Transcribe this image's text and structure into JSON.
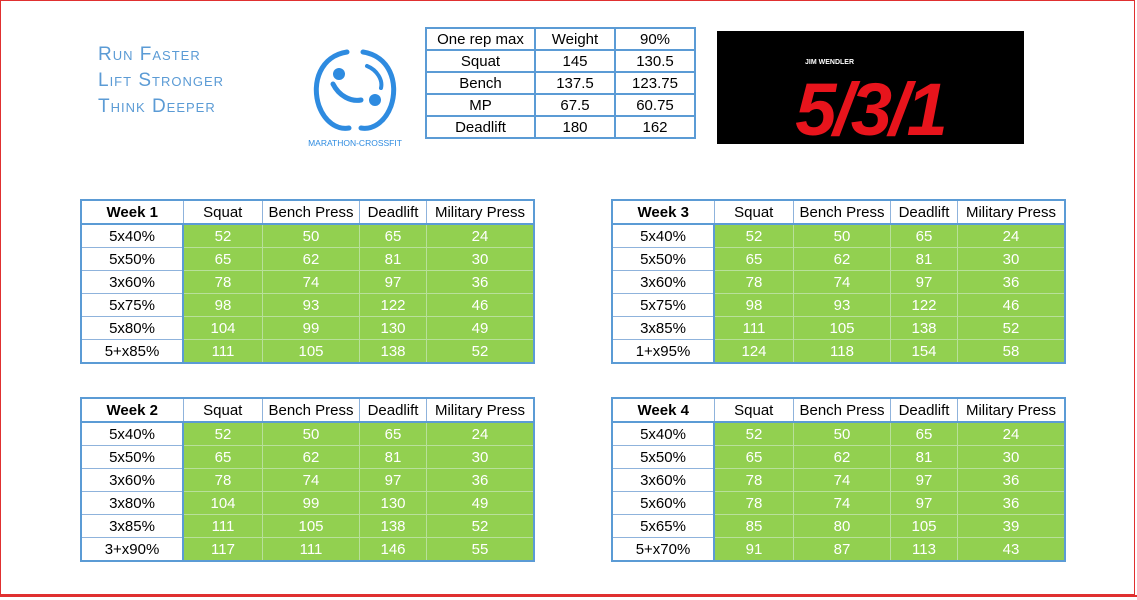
{
  "slogan": [
    "Run Faster",
    "Lift Stronger",
    "Think Deeper"
  ],
  "logos": {
    "marathon_crossfit": {
      "text": "MARATHON-CROSSFIT",
      "color": "#2e8be0"
    },
    "program": {
      "author": "JIM WENDLER",
      "title": "5/3/1",
      "color": "#e8141c"
    }
  },
  "one_rep_max": {
    "headers": [
      "One rep max",
      "Weight",
      "90%"
    ],
    "rows": [
      [
        "Squat",
        "145",
        "130.5"
      ],
      [
        "Bench",
        "137.5",
        "123.75"
      ],
      [
        "MP",
        "67.5",
        "60.75"
      ],
      [
        "Deadlift",
        "180",
        "162"
      ]
    ]
  },
  "weeks": [
    {
      "headers": [
        "Week 1",
        "Squat",
        "Bench Press",
        "Deadlift",
        "Military Press"
      ],
      "rows": [
        [
          "5x40%",
          "52",
          "50",
          "65",
          "24"
        ],
        [
          "5x50%",
          "65",
          "62",
          "81",
          "30"
        ],
        [
          "3x60%",
          "78",
          "74",
          "97",
          "36"
        ],
        [
          "5x75%",
          "98",
          "93",
          "122",
          "46"
        ],
        [
          "5x80%",
          "104",
          "99",
          "130",
          "49"
        ],
        [
          "5+x85%",
          "111",
          "105",
          "138",
          "52"
        ]
      ]
    },
    {
      "headers": [
        "Week 2",
        "Squat",
        "Bench Press",
        "Deadlift",
        "Military Press"
      ],
      "rows": [
        [
          "5x40%",
          "52",
          "50",
          "65",
          "24"
        ],
        [
          "5x50%",
          "65",
          "62",
          "81",
          "30"
        ],
        [
          "3x60%",
          "78",
          "74",
          "97",
          "36"
        ],
        [
          "3x80%",
          "104",
          "99",
          "130",
          "49"
        ],
        [
          "3x85%",
          "111",
          "105",
          "138",
          "52"
        ],
        [
          "3+x90%",
          "117",
          "111",
          "146",
          "55"
        ]
      ]
    },
    {
      "headers": [
        "Week 3",
        "Squat",
        "Bench Press",
        "Deadlift",
        "Military Press"
      ],
      "rows": [
        [
          "5x40%",
          "52",
          "50",
          "65",
          "24"
        ],
        [
          "5x50%",
          "65",
          "62",
          "81",
          "30"
        ],
        [
          "3x60%",
          "78",
          "74",
          "97",
          "36"
        ],
        [
          "5x75%",
          "98",
          "93",
          "122",
          "46"
        ],
        [
          "3x85%",
          "111",
          "105",
          "138",
          "52"
        ],
        [
          "1+x95%",
          "124",
          "118",
          "154",
          "58"
        ]
      ]
    },
    {
      "headers": [
        "Week 4",
        "Squat",
        "Bench Press",
        "Deadlift",
        "Military Press"
      ],
      "rows": [
        [
          "5x40%",
          "52",
          "50",
          "65",
          "24"
        ],
        [
          "5x50%",
          "65",
          "62",
          "81",
          "30"
        ],
        [
          "3x60%",
          "78",
          "74",
          "97",
          "36"
        ],
        [
          "5x60%",
          "78",
          "74",
          "97",
          "36"
        ],
        [
          "5x65%",
          "85",
          "80",
          "105",
          "39"
        ],
        [
          "5+x70%",
          "91",
          "87",
          "113",
          "43"
        ]
      ]
    }
  ],
  "colors": {
    "accent_blue": "#5b9bd5",
    "cell_green": "#92d050",
    "frame_red": "#e03030"
  }
}
